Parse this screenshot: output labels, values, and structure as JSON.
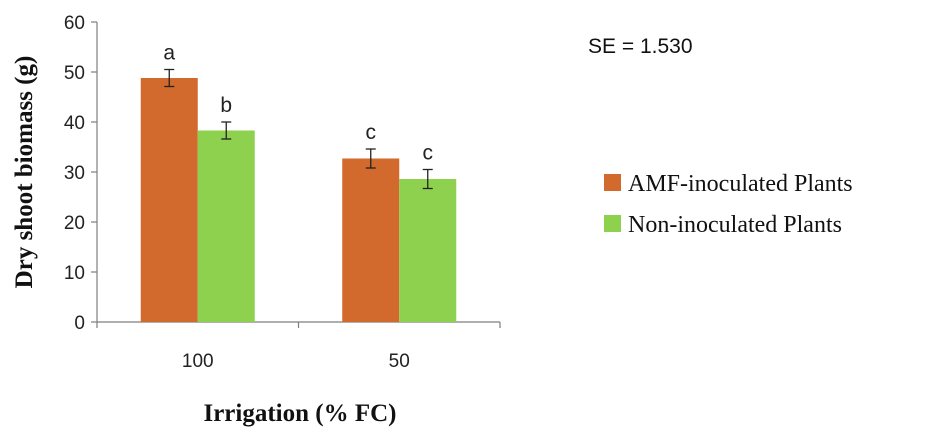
{
  "chart_data": {
    "type": "bar",
    "categories": [
      "100",
      "50"
    ],
    "series": [
      {
        "name": "AMF-inoculated Plants",
        "color": "#D2692D",
        "values": [
          48.8,
          32.7
        ],
        "errors": [
          1.7,
          1.9
        ],
        "letters": [
          "a",
          "c"
        ]
      },
      {
        "name": "Non-inoculated Plants",
        "color": "#8ED14F",
        "values": [
          38.3,
          28.6
        ],
        "errors": [
          1.7,
          1.9
        ],
        "letters": [
          "b",
          "c"
        ]
      }
    ],
    "ylim": [
      0,
      60
    ],
    "yticks": [
      0,
      10,
      20,
      30,
      40,
      50,
      60
    ],
    "xlabel": "Irrigation (% FC)",
    "ylabel": "Dry shoot biomass (g)",
    "annotation": "SE = 1.530",
    "legend_position": "right",
    "grid": false
  }
}
